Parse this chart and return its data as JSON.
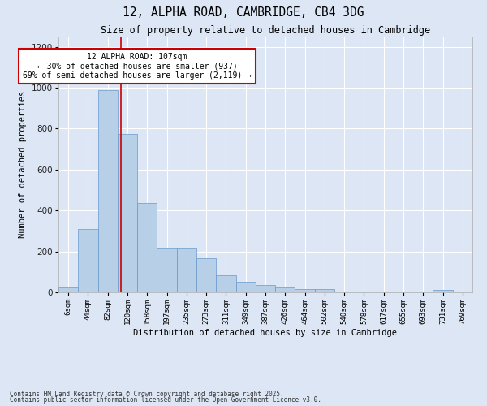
{
  "title": "12, ALPHA ROAD, CAMBRIDGE, CB4 3DG",
  "subtitle": "Size of property relative to detached houses in Cambridge",
  "xlabel": "Distribution of detached houses by size in Cambridge",
  "ylabel": "Number of detached properties",
  "categories": [
    "6sqm",
    "44sqm",
    "82sqm",
    "120sqm",
    "158sqm",
    "197sqm",
    "235sqm",
    "273sqm",
    "311sqm",
    "349sqm",
    "387sqm",
    "426sqm",
    "464sqm",
    "502sqm",
    "540sqm",
    "578sqm",
    "617sqm",
    "655sqm",
    "693sqm",
    "731sqm",
    "769sqm"
  ],
  "values": [
    22,
    310,
    990,
    775,
    435,
    215,
    215,
    165,
    82,
    50,
    35,
    22,
    16,
    16,
    0,
    0,
    0,
    0,
    0,
    10,
    0
  ],
  "bar_color": "#b8cfe8",
  "bar_edge_color": "#6699cc",
  "bg_color": "#dce6f5",
  "grid_color": "#ffffff",
  "vline_x_index": 2,
  "vline_x_offset": 0.65,
  "vline_color": "#cc0000",
  "annotation_text": "12 ALPHA ROAD: 107sqm\n← 30% of detached houses are smaller (937)\n69% of semi-detached houses are larger (2,119) →",
  "annotation_box_edgecolor": "#cc0000",
  "ylim": [
    0,
    1250
  ],
  "yticks": [
    0,
    200,
    400,
    600,
    800,
    1000,
    1200
  ],
  "fig_facecolor": "#dce6f5",
  "footnote1": "Contains HM Land Registry data © Crown copyright and database right 2025.",
  "footnote2": "Contains public sector information licensed under the Open Government Licence v3.0."
}
